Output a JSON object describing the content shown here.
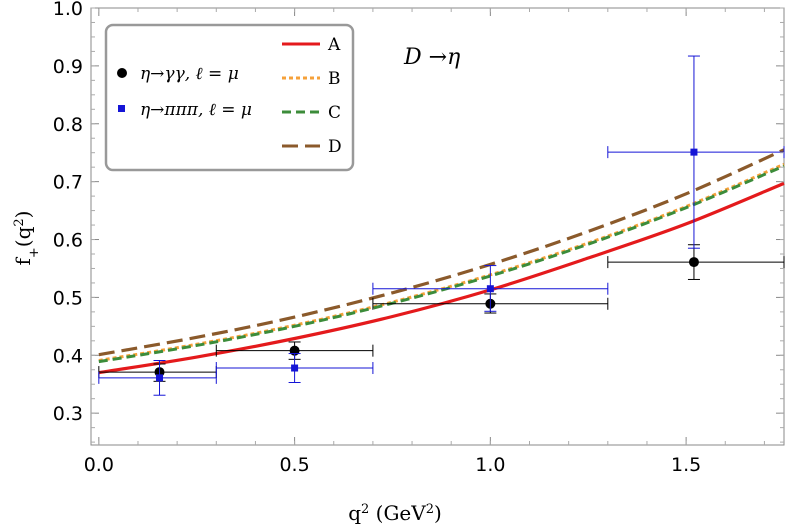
{
  "chart_data": {
    "type": "line",
    "xlabel": "q",
    "xlabel_sup": "2",
    "xlabel_unit": " (GeV",
    "xlabel_unit_sup": "2",
    "xlabel_unit_close": ")",
    "ylabel": "f",
    "ylabel_sub": "+",
    "ylabel_arg": "(q",
    "ylabel_arg_sup": "2",
    "ylabel_arg_close": ")",
    "xlim": [
      -0.02,
      1.75
    ],
    "ylim": [
      0.245,
      1.0
    ],
    "x_ticks": [
      0.0,
      0.5,
      1.0,
      1.5
    ],
    "x_tick_labels": [
      "0.0",
      "0.5",
      "1.0",
      "1.5"
    ],
    "y_ticks": [
      0.3,
      0.4,
      0.5,
      0.6,
      0.7,
      0.8,
      0.9,
      1.0
    ],
    "y_tick_labels": [
      "0.3",
      "0.4",
      "0.5",
      "0.6",
      "0.7",
      "0.8",
      "0.9",
      "1.0"
    ],
    "annotation": "D →η",
    "legend_position": "top-left",
    "curves": [
      {
        "name": "A",
        "color": "#e41a1c",
        "dash": "",
        "width": 3.2,
        "x": [
          0.0,
          0.25,
          0.5,
          0.75,
          1.0,
          1.25,
          1.5,
          1.75
        ],
        "y": [
          0.37,
          0.397,
          0.429,
          0.467,
          0.513,
          0.568,
          0.627,
          0.697
        ]
      },
      {
        "name": "B",
        "color": "#f6a13a",
        "dash": "4 3",
        "width": 3.0,
        "x": [
          0.0,
          0.25,
          0.5,
          0.75,
          1.0,
          1.25,
          1.5,
          1.75
        ],
        "y": [
          0.391,
          0.419,
          0.452,
          0.492,
          0.539,
          0.594,
          0.657,
          0.73
        ]
      },
      {
        "name": "C",
        "color": "#3c8c3a",
        "dash": "9 5",
        "width": 3.0,
        "x": [
          0.0,
          0.25,
          0.5,
          0.75,
          1.0,
          1.25,
          1.5,
          1.75
        ],
        "y": [
          0.389,
          0.417,
          0.45,
          0.49,
          0.537,
          0.592,
          0.655,
          0.727
        ]
      },
      {
        "name": "D",
        "color": "#8b5a2b",
        "dash": "16 7",
        "width": 3.2,
        "x": [
          0.0,
          0.25,
          0.5,
          0.75,
          1.0,
          1.25,
          1.5,
          1.75
        ],
        "y": [
          0.401,
          0.431,
          0.466,
          0.508,
          0.557,
          0.614,
          0.679,
          0.755
        ]
      }
    ],
    "points": [
      {
        "series": "η→γγ, ℓ = μ",
        "color": "#000000",
        "marker": "circle",
        "data": [
          {
            "x": 0.155,
            "y": 0.371,
            "xerr": [
              0.0,
              0.3
            ],
            "yerr": [
              0.355,
              0.385
            ]
          },
          {
            "x": 0.5,
            "y": 0.408,
            "xerr": [
              0.3,
              0.7
            ],
            "yerr": [
              0.393,
              0.423
            ]
          },
          {
            "x": 1.0,
            "y": 0.489,
            "xerr": [
              0.7,
              1.3
            ],
            "yerr": [
              0.473,
              0.506
            ]
          },
          {
            "x": 1.52,
            "y": 0.561,
            "xerr": [
              1.3,
              1.75
            ],
            "yerr": [
              0.531,
              0.591
            ]
          }
        ]
      },
      {
        "series": "η→πππ, ℓ = μ",
        "color": "#1515d6",
        "marker": "square",
        "data": [
          {
            "x": 0.155,
            "y": 0.361,
            "xerr": [
              0.0,
              0.3
            ],
            "yerr": [
              0.331,
              0.391
            ]
          },
          {
            "x": 0.5,
            "y": 0.378,
            "xerr": [
              0.3,
              0.7
            ],
            "yerr": [
              0.353,
              0.403
            ]
          },
          {
            "x": 1.0,
            "y": 0.515,
            "xerr": [
              0.7,
              1.3
            ],
            "yerr": [
              0.476,
              0.555
            ]
          },
          {
            "x": 1.52,
            "y": 0.751,
            "xerr": [
              1.3,
              1.75
            ],
            "yerr": [
              0.585,
              0.917
            ]
          }
        ]
      }
    ]
  },
  "legend": {
    "points": [
      {
        "label": "η→γγ, ℓ = μ",
        "color": "#000000",
        "marker": "circle"
      },
      {
        "label": "η→πππ, ℓ = μ",
        "color": "#1515d6",
        "marker": "square"
      }
    ],
    "lines": [
      {
        "label": "A",
        "color": "#e41a1c",
        "dash": ""
      },
      {
        "label": "B",
        "color": "#f6a13a",
        "dash": "4 3"
      },
      {
        "label": "C",
        "color": "#3c8c3a",
        "dash": "9 5"
      },
      {
        "label": "D",
        "color": "#8b5a2b",
        "dash": "16 7"
      }
    ]
  }
}
